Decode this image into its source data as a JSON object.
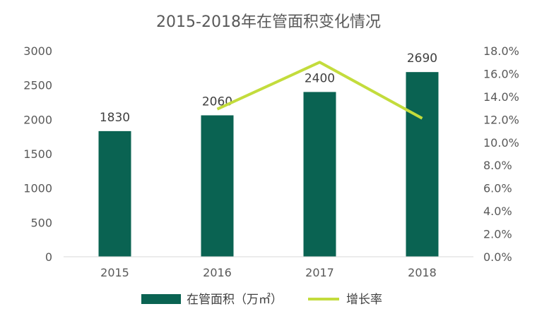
{
  "chart_data": {
    "type": "bar",
    "title": "2015-2018年在管面积变化情况",
    "categories": [
      "2015",
      "2016",
      "2017",
      "2018"
    ],
    "series": [
      {
        "name": "在管面积（万㎡）",
        "type": "bar",
        "axis": "left",
        "values": [
          1830,
          2060,
          2400,
          2690
        ],
        "color": "#0a6352"
      },
      {
        "name": "增长率",
        "type": "line",
        "axis": "right",
        "values": [
          null,
          12.9,
          17.0,
          12.1
        ],
        "color": "#c3dc3c"
      }
    ],
    "y_left": {
      "min": 0,
      "max": 3000,
      "ticks": [
        "0",
        "500",
        "1000",
        "1500",
        "2000",
        "2500",
        "3000"
      ]
    },
    "y_right": {
      "min": 0,
      "max": 18,
      "ticks": [
        "0.0%",
        "2.0%",
        "4.0%",
        "6.0%",
        "8.0%",
        "10.0%",
        "12.0%",
        "14.0%",
        "16.0%",
        "18.0%"
      ]
    },
    "data_labels": [
      "1830",
      "2060",
      "2400",
      "2690"
    ],
    "grid": false,
    "legend_position": "bottom"
  }
}
